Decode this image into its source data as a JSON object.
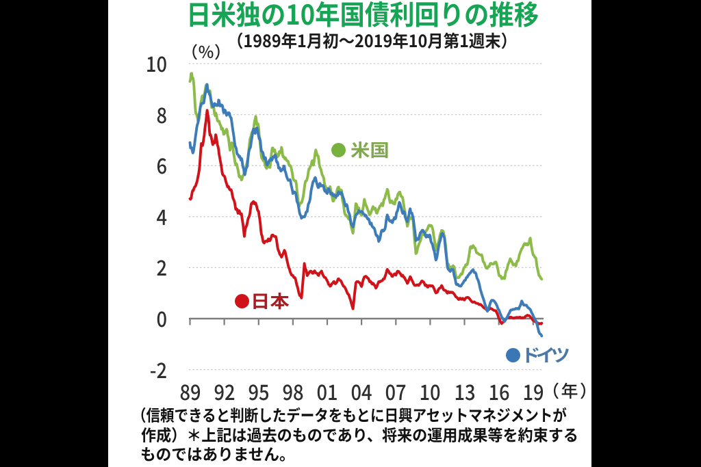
{
  "canvas": {
    "background": "#000000",
    "panel_background": "#ffffff"
  },
  "chart_data": {
    "type": "line",
    "title": "日米独の10年国債利回りの推移",
    "title_color": "#17a455",
    "subtitle": "（1989年1月初～2019年10月第1週末）",
    "y_unit_label": "（％）",
    "x_unit_label": "（年）",
    "y_tick_labels": [
      "10",
      "8",
      "6",
      "4",
      "2",
      "0",
      "-2"
    ],
    "y_tick_values": [
      10,
      8,
      6,
      4,
      2,
      0,
      -2
    ],
    "x_tick_labels": [
      "89",
      "92",
      "95",
      "98",
      "01",
      "04",
      "07",
      "10",
      "13",
      "16",
      "19"
    ],
    "x_tick_years": [
      1989,
      1992,
      1995,
      1998,
      2001,
      2004,
      2007,
      2010,
      2013,
      2016,
      2019
    ],
    "ylim": [
      -2,
      10
    ],
    "x_start": 1989.0,
    "x_step": 0.25,
    "x_end": 2019.75,
    "grid": "horizontal-dotted",
    "axis_zero_line": true,
    "series": [
      {
        "name": "米国",
        "color": "#8cbb4a",
        "marker_color": "#76b23e",
        "label_color": "#7fa94a",
        "values": [
          9.3,
          9.5,
          8.2,
          7.9,
          8.4,
          8.7,
          8.9,
          8.6,
          8.0,
          8.2,
          7.9,
          7.4,
          7.3,
          7.4,
          6.6,
          6.8,
          6.3,
          5.9,
          5.4,
          5.8,
          6.2,
          7.1,
          7.5,
          7.9,
          7.4,
          6.5,
          6.2,
          5.9,
          6.0,
          6.8,
          6.7,
          6.3,
          6.7,
          6.6,
          6.2,
          5.9,
          5.6,
          5.5,
          4.55,
          4.65,
          5.1,
          5.6,
          5.9,
          6.2,
          6.5,
          6.1,
          5.8,
          5.4,
          5.0,
          5.3,
          4.7,
          4.9,
          5.2,
          5.0,
          4.0,
          3.9,
          3.9,
          3.3,
          4.4,
          4.3,
          3.9,
          4.6,
          4.2,
          4.2,
          4.4,
          4.1,
          4.2,
          4.5,
          4.6,
          5.1,
          4.7,
          4.6,
          4.7,
          4.9,
          4.7,
          4.2,
          3.6,
          3.9,
          3.8,
          2.5,
          2.9,
          3.4,
          3.4,
          3.6,
          3.8,
          3.4,
          2.6,
          3.0,
          3.5,
          3.2,
          2.2,
          2.0,
          2.1,
          1.7,
          1.6,
          1.7,
          2.0,
          2.2,
          2.8,
          2.9,
          2.7,
          2.6,
          2.5,
          2.2,
          2.0,
          2.2,
          2.2,
          2.3,
          1.8,
          1.55,
          1.6,
          2.1,
          2.5,
          2.2,
          2.2,
          2.4,
          2.8,
          3.0,
          3.0,
          3.2,
          2.6,
          2.3,
          1.7,
          1.55
        ]
      },
      {
        "name": "日本",
        "color": "#d0131a",
        "marker_color": "#d0131a",
        "label_color": "#ab1c22",
        "values": [
          4.7,
          5.1,
          5.1,
          5.6,
          6.9,
          7.2,
          8.25,
          7.2,
          6.7,
          6.9,
          6.4,
          5.7,
          5.4,
          5.3,
          4.9,
          4.6,
          4.4,
          4.3,
          4.0,
          3.2,
          3.8,
          4.2,
          4.6,
          4.6,
          4.4,
          3.4,
          3.0,
          3.0,
          3.1,
          3.3,
          3.2,
          2.7,
          2.4,
          2.6,
          2.2,
          1.8,
          1.7,
          1.45,
          1.05,
          0.85,
          2.2,
          1.65,
          1.85,
          1.8,
          1.8,
          1.7,
          1.9,
          1.7,
          1.5,
          1.3,
          1.4,
          1.35,
          1.5,
          1.4,
          1.2,
          1.0,
          0.8,
          0.45,
          1.45,
          1.4,
          1.3,
          1.7,
          1.6,
          1.45,
          1.4,
          1.25,
          1.4,
          1.5,
          1.6,
          1.9,
          1.75,
          1.7,
          1.7,
          1.85,
          1.65,
          1.55,
          1.35,
          1.65,
          1.5,
          1.3,
          1.3,
          1.45,
          1.35,
          1.3,
          1.35,
          1.25,
          1.0,
          1.1,
          1.25,
          1.15,
          1.05,
          1.0,
          1.0,
          0.9,
          0.8,
          0.78,
          0.75,
          0.8,
          0.75,
          0.68,
          0.62,
          0.58,
          0.52,
          0.35,
          0.35,
          0.42,
          0.38,
          0.3,
          0.0,
          -0.22,
          -0.08,
          0.02,
          0.07,
          0.05,
          0.03,
          0.05,
          0.06,
          0.04,
          0.11,
          0.08,
          -0.05,
          -0.12,
          -0.25,
          -0.18
        ]
      },
      {
        "name": "ドイツ",
        "color": "#3e7bb9",
        "marker_color": "#3b76b5",
        "label_color": "#4b78a6",
        "values": [
          6.9,
          6.7,
          7.1,
          7.6,
          8.5,
          8.8,
          9.0,
          8.9,
          8.3,
          8.4,
          8.6,
          8.3,
          7.9,
          8.0,
          7.9,
          7.3,
          6.7,
          6.5,
          6.1,
          5.7,
          6.1,
          6.8,
          7.3,
          7.5,
          7.2,
          6.8,
          6.5,
          6.1,
          6.2,
          6.5,
          6.3,
          5.9,
          5.9,
          6.0,
          5.6,
          5.4,
          5.1,
          4.8,
          4.2,
          3.9,
          4.0,
          4.3,
          4.9,
          5.2,
          5.5,
          5.2,
          5.2,
          5.0,
          4.8,
          5.1,
          4.8,
          4.7,
          5.0,
          5.1,
          4.4,
          4.3,
          4.0,
          3.7,
          4.2,
          4.3,
          4.1,
          4.2,
          4.0,
          3.7,
          3.6,
          3.3,
          3.1,
          3.4,
          3.5,
          4.0,
          3.8,
          3.8,
          4.0,
          4.4,
          4.3,
          4.3,
          3.8,
          4.4,
          4.2,
          3.0,
          3.1,
          3.4,
          3.3,
          3.3,
          3.2,
          2.8,
          2.3,
          2.8,
          3.3,
          3.1,
          2.1,
          1.9,
          1.85,
          1.35,
          1.25,
          1.35,
          1.5,
          1.6,
          1.8,
          1.9,
          1.7,
          1.4,
          1.0,
          0.7,
          0.3,
          0.6,
          0.75,
          0.6,
          0.3,
          0.05,
          -0.1,
          0.1,
          0.3,
          0.35,
          0.45,
          0.4,
          0.7,
          0.5,
          0.45,
          0.35,
          0.1,
          -0.1,
          -0.5,
          -0.68
        ]
      }
    ],
    "source_note_lines": [
      "（信頼できると判断したデータをもとに日興アセットマネジメントが",
      "作成）＊上記は過去のものであり、将来の運用成果等を約束する",
      "ものではありません。"
    ]
  }
}
